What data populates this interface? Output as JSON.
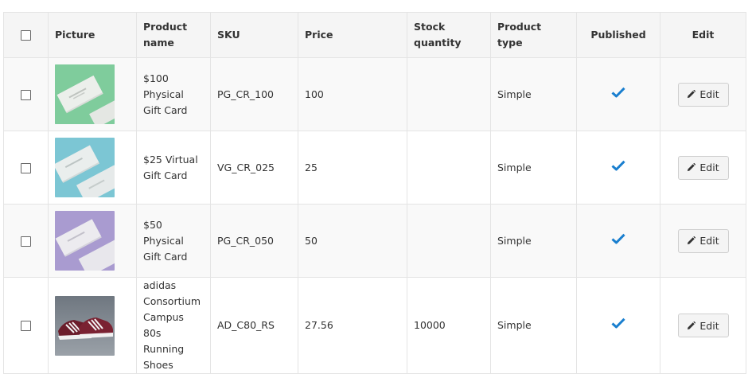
{
  "columns": {
    "picture": "Picture",
    "product_name": "Product name",
    "sku": "SKU",
    "price": "Price",
    "stock_quantity": "Stock quantity",
    "product_type": "Product type",
    "published": "Published",
    "edit": "Edit"
  },
  "icons": {
    "published": "checkmark-icon",
    "edit": "pencil-icon"
  },
  "colors": {
    "checkmark": "#1a7fcf",
    "header_bg": "#f5f5f5",
    "border": "#e4e4e4"
  },
  "rows": [
    {
      "product_name": "$100 Physical Gift Card",
      "sku": "PG_CR_100",
      "price": "100",
      "stock_quantity": "",
      "product_type": "Simple",
      "published": true,
      "edit_label": "Edit",
      "picture": "gift-card-green"
    },
    {
      "product_name": "$25 Virtual Gift Card",
      "sku": "VG_CR_025",
      "price": "25",
      "stock_quantity": "",
      "product_type": "Simple",
      "published": true,
      "edit_label": "Edit",
      "picture": "gift-card-teal"
    },
    {
      "product_name": "$50 Physical Gift Card",
      "sku": "PG_CR_050",
      "price": "50",
      "stock_quantity": "",
      "product_type": "Simple",
      "published": true,
      "edit_label": "Edit",
      "picture": "gift-card-purple"
    },
    {
      "product_name": "adidas Consortium Campus 80s Running Shoes",
      "sku": "AD_C80_RS",
      "price": "27.56",
      "stock_quantity": "10000",
      "product_type": "Simple",
      "published": true,
      "edit_label": "Edit",
      "picture": "shoes-photo"
    }
  ]
}
